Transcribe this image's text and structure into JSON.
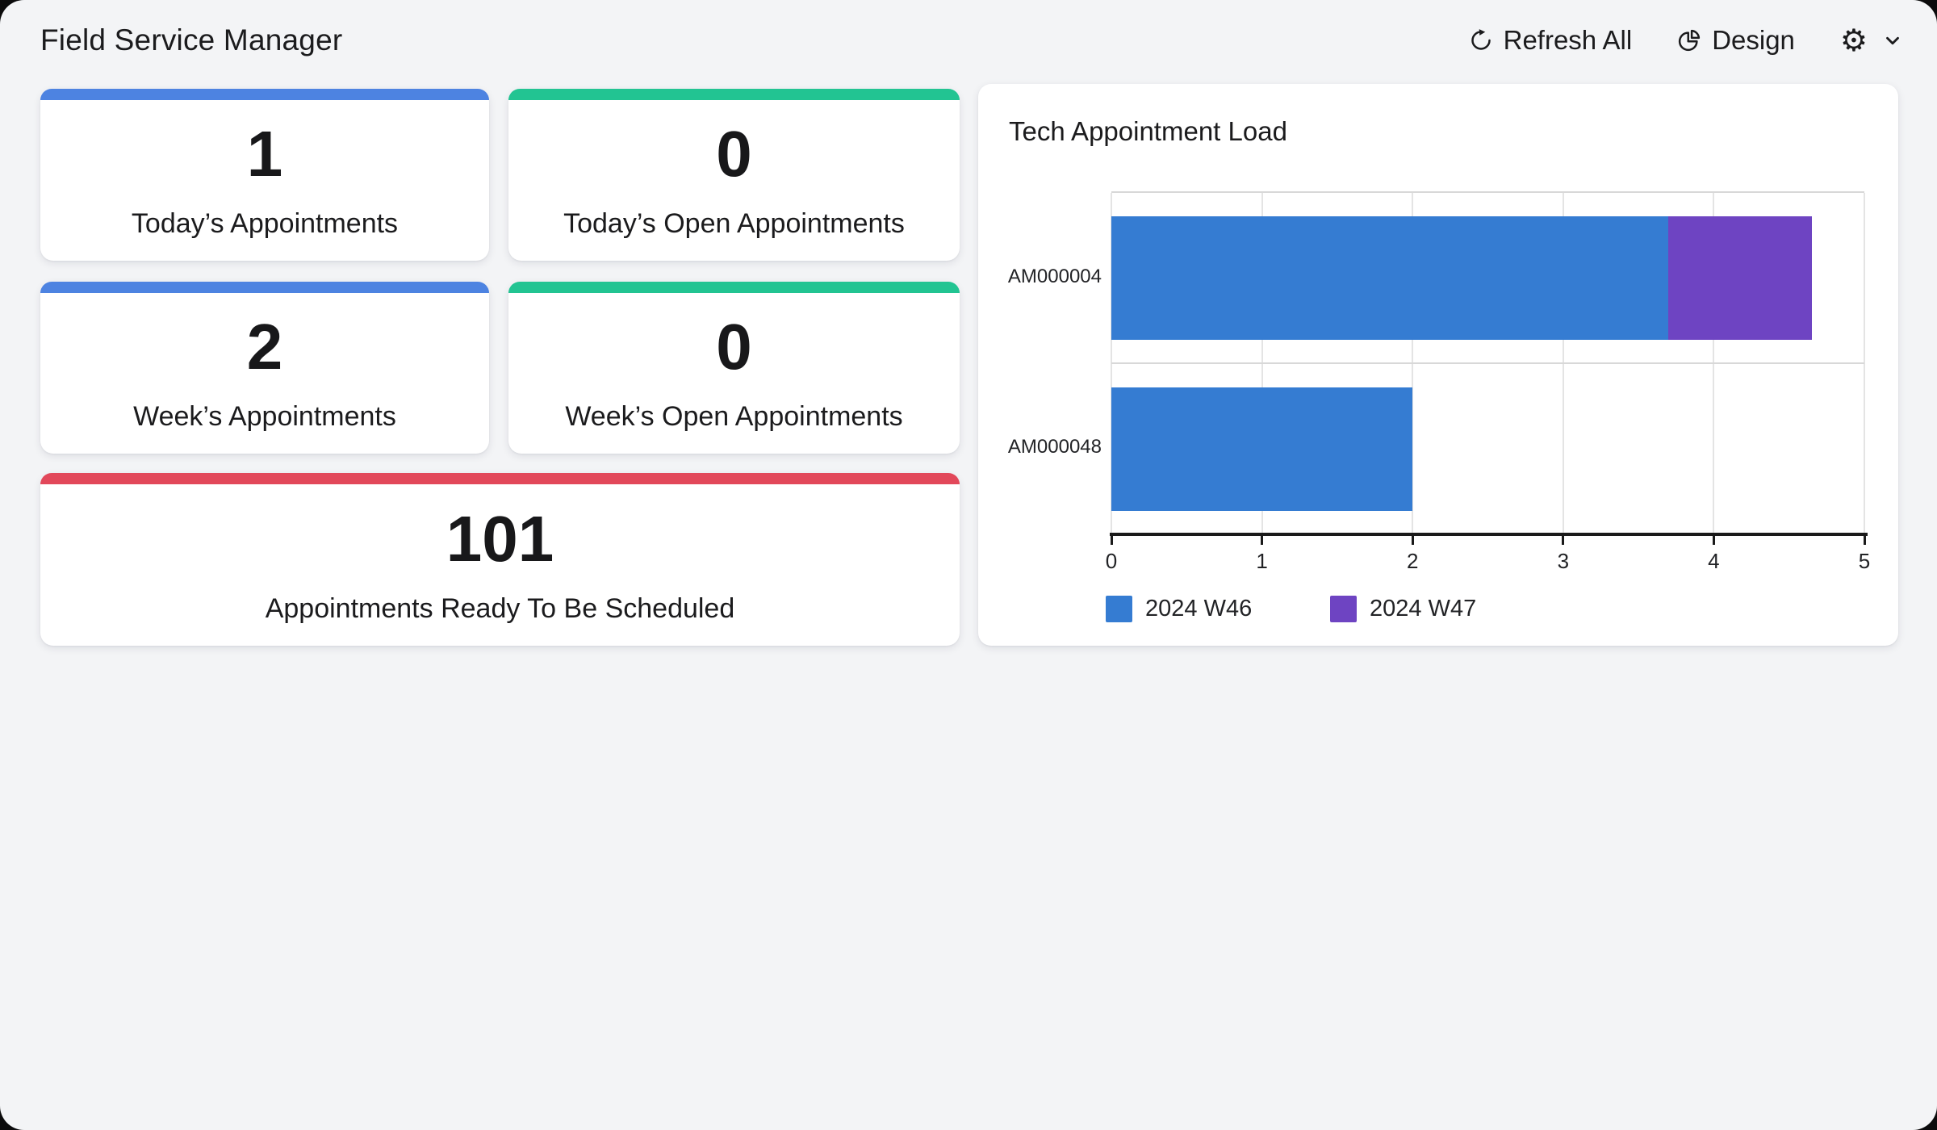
{
  "header": {
    "title": "Field Service Manager",
    "refresh_label": "Refresh All",
    "design_label": "Design"
  },
  "icons": {
    "gear": "⚙",
    "refresh": "refresh-circular-arrow",
    "design": "pie-chart",
    "dropdown": "chevron-down"
  },
  "cards": [
    {
      "value": "1",
      "label": "Today’s Appointments",
      "accent": "#4d83e1"
    },
    {
      "value": "0",
      "label": "Today’s Open Appointments",
      "accent": "#22c492"
    },
    {
      "value": "2",
      "label": "Week’s Appointments",
      "accent": "#4d83e1"
    },
    {
      "value": "0",
      "label": "Week’s Open Appointments",
      "accent": "#22c492"
    },
    {
      "value": "101",
      "label": "Appointments Ready To Be Scheduled",
      "accent": "#e2485a"
    }
  ],
  "chart_data": {
    "type": "bar",
    "orientation": "horizontal",
    "stacked": true,
    "title": "Tech Appointment Load",
    "categories": [
      "AM000004",
      "AM000048"
    ],
    "series": [
      {
        "name": "2024 W46",
        "color": "#357cd2",
        "values": [
          3.7,
          2
        ]
      },
      {
        "name": "2024 W47",
        "color": "#6e44c2",
        "values": [
          0.95,
          0
        ]
      }
    ],
    "xlabel": "",
    "ylabel": "",
    "xlim": [
      0,
      5
    ],
    "xticks": [
      0,
      1,
      2,
      3,
      4,
      5
    ],
    "grid": true,
    "legend_position": "bottom",
    "axis_color": "#1a1a1a",
    "gridline_color": "#e4e4e4"
  }
}
